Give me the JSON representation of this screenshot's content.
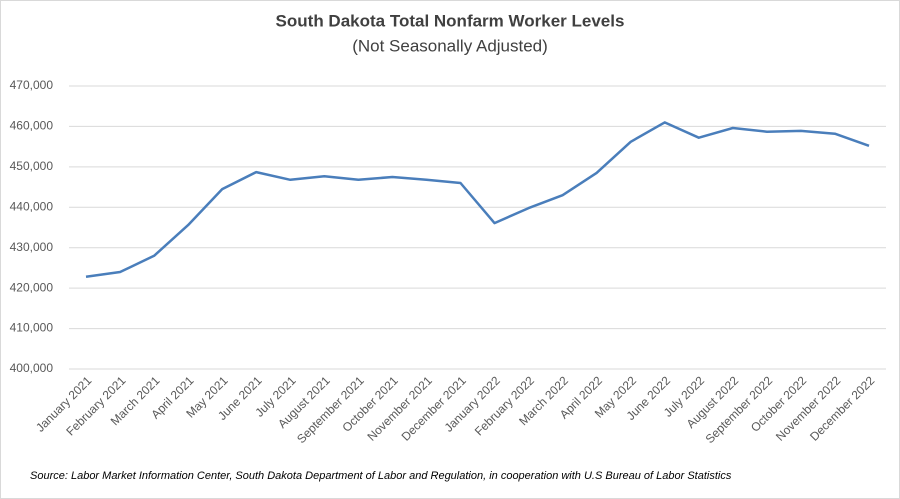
{
  "chart_data": {
    "type": "line",
    "title": "South Dakota Total Nonfarm Worker Levels",
    "subtitle": "(Not Seasonally Adjusted)",
    "source": "Source: Labor Market Information Center, South Dakota Department of Labor and Regulation, in cooperation with U.S Bureau of Labor Statistics",
    "categories": [
      "January 2021",
      "February 2021",
      "March 2021",
      "April 2021",
      "May 2021",
      "June 2021",
      "July 2021",
      "August 2021",
      "September 2021",
      "October 2021",
      "November 2021",
      "December 2021",
      "January 2022",
      "February 2022",
      "March 2022",
      "April 2022",
      "May 2022",
      "June 2022",
      "July 2022",
      "August 2022",
      "September 2022",
      "October 2022",
      "November 2022",
      "December 2022"
    ],
    "series": [
      {
        "name": "Total Nonfarm",
        "color": "#4a7ebb",
        "values": [
          422800,
          424000,
          428000,
          435600,
          444500,
          448700,
          446800,
          447700,
          446800,
          447500,
          446800,
          446000,
          436100,
          439800,
          443000,
          448500,
          456200,
          461000,
          457200,
          459600,
          458700,
          458900,
          458200,
          455200
        ]
      }
    ],
    "ylim": [
      400000,
      470000
    ],
    "yticks": [
      {
        "value": 400000,
        "label": "400,000"
      },
      {
        "value": 410000,
        "label": "410,000"
      },
      {
        "value": 420000,
        "label": "420,000"
      },
      {
        "value": 430000,
        "label": "430,000"
      },
      {
        "value": 440000,
        "label": "440,000"
      },
      {
        "value": 450000,
        "label": "450,000"
      },
      {
        "value": 460000,
        "label": "460,000"
      },
      {
        "value": 470000,
        "label": "470,000"
      }
    ],
    "grid": true
  }
}
